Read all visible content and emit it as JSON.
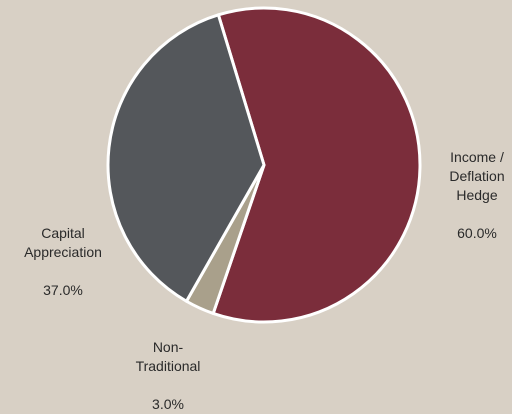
{
  "chart_data": {
    "type": "pie",
    "slices": [
      {
        "label": "Income / Deflation Hedge",
        "display": "Income /\nDeflation\nHedge",
        "value": 60.0,
        "value_label": "60.0%",
        "color": "#7b2d3b"
      },
      {
        "label": "Non-Traditional",
        "display": "Non-\nTraditional",
        "value": 3.0,
        "value_label": "3.0%",
        "color": "#a9a08b"
      },
      {
        "label": "Capital Appreciation",
        "display": "Capital\nAppreciation",
        "value": 37.0,
        "value_label": "37.0%",
        "color": "#54575b"
      }
    ],
    "start_angle_deg": -17,
    "legend": "none"
  }
}
